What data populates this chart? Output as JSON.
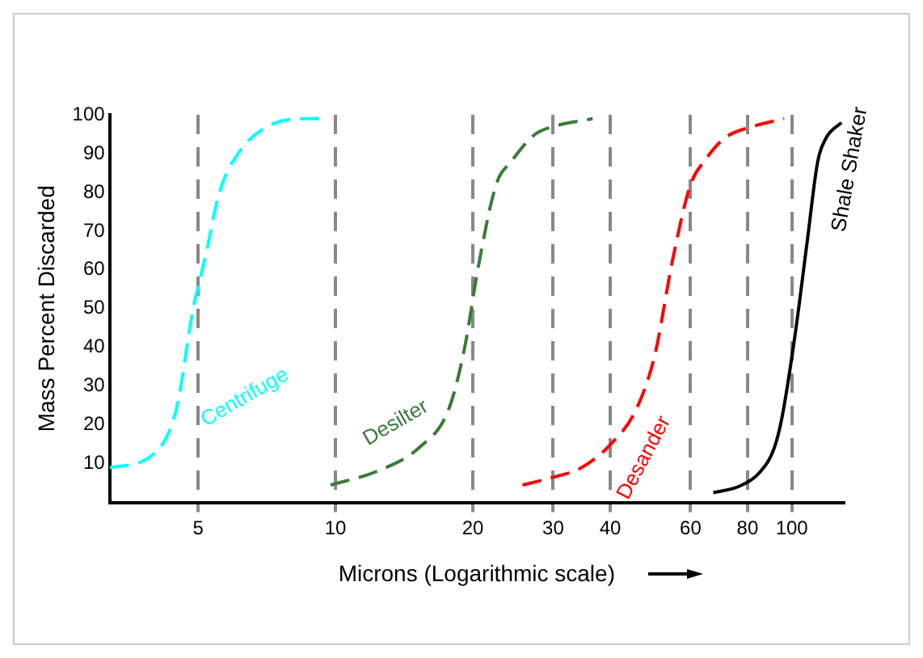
{
  "chart_data": {
    "type": "line",
    "xlabel": "Microns (Logarithmic scale)",
    "ylabel": "Mass Percent Discarded",
    "log": "x",
    "xlim": [
      3.2,
      130
    ],
    "xticks": [
      5,
      10,
      20,
      30,
      40,
      60,
      80,
      100
    ],
    "ylim": [
      0,
      100
    ],
    "yticks": [
      10,
      20,
      30,
      40,
      50,
      60,
      70,
      80,
      90,
      100
    ],
    "grid": "x",
    "legend": false,
    "marker": "none",
    "series": [
      {
        "name": "Centrifuge",
        "color": "#00ffff",
        "line_style": "dashed",
        "x": [
          3.2,
          3.95,
          4.48,
          4.88,
          5.18,
          5.57,
          6.12,
          7.1,
          8.65,
          9.3
        ],
        "values": [
          9,
          12,
          24,
          50,
          63,
          80,
          90,
          97,
          99,
          99
        ]
      },
      {
        "name": "Desilter",
        "color": "#3a7a3a",
        "line_style": "dashed",
        "x": [
          9.76,
          12.3,
          15.2,
          17.7,
          19.2,
          20.5,
          22.5,
          24.3,
          27.4,
          30.1,
          36.6
        ],
        "values": [
          4.5,
          8,
          14,
          24,
          40,
          60,
          82,
          88,
          95,
          97,
          99
        ]
      },
      {
        "name": "Desander",
        "color": "#ff0000",
        "line_style": "dashed",
        "x": [
          25.7,
          30,
          34.6,
          40.1,
          45.6,
          50.1,
          54.9,
          60,
          64.3,
          71.3,
          82.2,
          96.2
        ],
        "values": [
          4.5,
          6.5,
          9,
          15,
          24,
          38,
          63,
          82,
          88,
          94,
          97,
          99
        ]
      },
      {
        "name": "Shale Shaker",
        "color": "#000000",
        "line_style": "solid",
        "x": [
          67.3,
          77.1,
          85.4,
          91.5,
          95.2,
          101.6,
          108,
          114,
          118.9,
          128.5
        ],
        "values": [
          2.5,
          4.3,
          8,
          14,
          22,
          43,
          67,
          88,
          94,
          98
        ]
      }
    ]
  }
}
